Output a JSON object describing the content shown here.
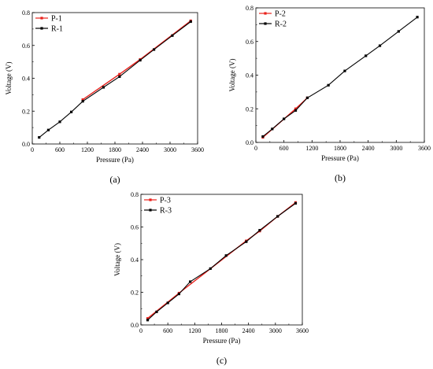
{
  "chart_data": [
    {
      "type": "line",
      "panel_label": "(a)",
      "xlabel": "Pressure (Pa)",
      "ylabel": "Voltage (V)",
      "xlim": [
        0,
        3600
      ],
      "ylim": [
        0,
        0.8
      ],
      "xticks": [
        "0",
        "600",
        "1200",
        "1800",
        "2400",
        "3000",
        "3600"
      ],
      "yticks": [
        "0.0",
        "0.2",
        "0.4",
        "0.6",
        "0.8"
      ],
      "legend_position": "top-left",
      "grid": false,
      "series": [
        {
          "name": "P-1",
          "color": "#e8211c",
          "marker": "square",
          "x": [
            1100,
            1900,
            2350,
            3450
          ],
          "y": [
            0.27,
            0.425,
            0.515,
            0.75
          ]
        },
        {
          "name": "R-1",
          "color": "#000000",
          "marker": "square",
          "x": [
            150,
            350,
            600,
            850,
            1100,
            1550,
            1900,
            2350,
            2650,
            3050,
            3450
          ],
          "y": [
            0.04,
            0.085,
            0.135,
            0.195,
            0.26,
            0.345,
            0.41,
            0.51,
            0.575,
            0.66,
            0.745
          ]
        }
      ]
    },
    {
      "type": "line",
      "panel_label": "(b)",
      "xlabel": "Pressure (Pa)",
      "ylabel": "Voltage (V)",
      "xlim": [
        0,
        3600
      ],
      "ylim": [
        0,
        0.8
      ],
      "xticks": [
        "0",
        "600",
        "1200",
        "1800",
        "2400",
        "3000",
        "3600"
      ],
      "yticks": [
        "0.0",
        "0.2",
        "0.4",
        "0.6",
        "0.8"
      ],
      "legend_position": "top-left",
      "grid": false,
      "series": [
        {
          "name": "P-2",
          "color": "#e8211c",
          "marker": "square",
          "x": [
            150,
            850,
            1100
          ],
          "y": [
            0.03,
            0.2,
            0.265
          ]
        },
        {
          "name": "R-2",
          "color": "#000000",
          "marker": "square",
          "x": [
            150,
            350,
            600,
            850,
            1100,
            1550,
            1900,
            2350,
            2650,
            3050,
            3450
          ],
          "y": [
            0.035,
            0.08,
            0.14,
            0.19,
            0.265,
            0.34,
            0.425,
            0.515,
            0.575,
            0.66,
            0.745
          ]
        }
      ]
    },
    {
      "type": "line",
      "panel_label": "(c)",
      "xlabel": "Pressure (Pa)",
      "ylabel": "Voltage (V)",
      "xlim": [
        0,
        3600
      ],
      "ylim": [
        0,
        0.8
      ],
      "xticks": [
        "0",
        "600",
        "1200",
        "1800",
        "2400",
        "3000",
        "3600"
      ],
      "yticks": [
        "0.0",
        "0.2",
        "0.4",
        "0.6",
        "0.8"
      ],
      "legend_position": "top-left",
      "grid": false,
      "series": [
        {
          "name": "P-3",
          "color": "#e8211c",
          "marker": "square",
          "x": [
            150,
            850,
            2350,
            2650,
            3050,
            3450
          ],
          "y": [
            0.04,
            0.195,
            0.515,
            0.575,
            0.665,
            0.75
          ]
        },
        {
          "name": "R-3",
          "color": "#000000",
          "marker": "square",
          "x": [
            150,
            350,
            600,
            850,
            1100,
            1550,
            1900,
            2350,
            2650,
            3050,
            3450
          ],
          "y": [
            0.03,
            0.08,
            0.135,
            0.19,
            0.265,
            0.345,
            0.425,
            0.51,
            0.58,
            0.665,
            0.745
          ]
        }
      ]
    }
  ]
}
